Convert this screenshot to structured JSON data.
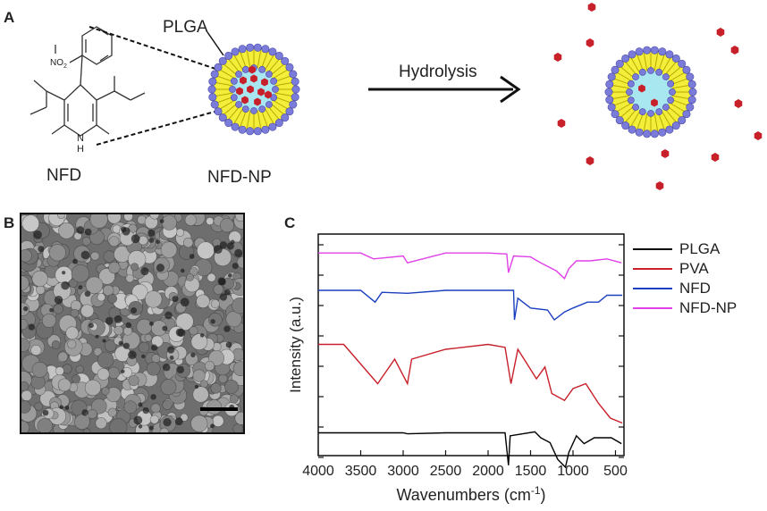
{
  "panel_a": {
    "letter": "A",
    "plga_label": "PLGA",
    "nfd_label": "NFD",
    "nfd_np_label": "NFD-NP",
    "hydrolysis_label": "Hydrolysis",
    "molecule_atoms": {
      "nitro": "NO",
      "nitro_sup": "2",
      "nitro_neg": "-",
      "nh": "H",
      "n": "N"
    },
    "colors": {
      "shell_bead": "#7b7bd9",
      "lipid": "#f2ee3a",
      "core": "#a8e6f0",
      "drug": "#c8202a"
    }
  },
  "panel_b": {
    "letter": "B"
  },
  "panel_c": {
    "letter": "C",
    "legend": [
      {
        "label": "PLGA",
        "color": "#000000"
      },
      {
        "label": "PVA",
        "color": "#c8202a"
      },
      {
        "label": "NFD",
        "color": "#1a3fbf"
      },
      {
        "label": "NFD-NP",
        "color": "#e040e8"
      }
    ]
  },
  "chart_data": {
    "type": "line",
    "xlabel": "Wavenumbers (cm",
    "xlabel_sup": "-1",
    "xlabel_end": ")",
    "ylabel": "Intensity (a.u.)",
    "xlim": [
      4000,
      400
    ],
    "x_ticks": [
      4000,
      3500,
      3000,
      2500,
      2000,
      1500,
      1000,
      500
    ],
    "y_ticks_shown": false,
    "series": [
      {
        "name": "PLGA",
        "color": "#000000",
        "points": [
          [
            4000,
            0.05
          ],
          [
            3500,
            0.05
          ],
          [
            3000,
            0.05
          ],
          [
            2950,
            0.04
          ],
          [
            2500,
            0.05
          ],
          [
            2000,
            0.05
          ],
          [
            1800,
            0.05
          ],
          [
            1760,
            -0.28
          ],
          [
            1740,
            0.02
          ],
          [
            1450,
            0.06
          ],
          [
            1380,
            0.0
          ],
          [
            1270,
            -0.05
          ],
          [
            1180,
            -0.22
          ],
          [
            1090,
            -0.3
          ],
          [
            1050,
            -0.15
          ],
          [
            960,
            0.02
          ],
          [
            870,
            -0.06
          ],
          [
            750,
            0.0
          ],
          [
            550,
            0.0
          ],
          [
            430,
            -0.06
          ]
        ]
      },
      {
        "name": "PVA",
        "color": "#c8202a",
        "points": [
          [
            4000,
            0.95
          ],
          [
            3700,
            0.95
          ],
          [
            3500,
            0.75
          ],
          [
            3300,
            0.55
          ],
          [
            3100,
            0.8
          ],
          [
            2950,
            0.55
          ],
          [
            2900,
            0.8
          ],
          [
            2500,
            0.9
          ],
          [
            2000,
            0.95
          ],
          [
            1800,
            0.92
          ],
          [
            1730,
            0.55
          ],
          [
            1650,
            0.9
          ],
          [
            1430,
            0.6
          ],
          [
            1330,
            0.72
          ],
          [
            1250,
            0.45
          ],
          [
            1100,
            0.38
          ],
          [
            1000,
            0.5
          ],
          [
            850,
            0.55
          ],
          [
            700,
            0.35
          ],
          [
            560,
            0.2
          ],
          [
            420,
            0.15
          ]
        ]
      },
      {
        "name": "NFD",
        "color": "#1a3fbf",
        "points": [
          [
            4000,
            1.5
          ],
          [
            3500,
            1.5
          ],
          [
            3330,
            1.38
          ],
          [
            3250,
            1.48
          ],
          [
            2950,
            1.47
          ],
          [
            2500,
            1.5
          ],
          [
            2000,
            1.5
          ],
          [
            1700,
            1.5
          ],
          [
            1690,
            1.2
          ],
          [
            1650,
            1.42
          ],
          [
            1500,
            1.32
          ],
          [
            1300,
            1.3
          ],
          [
            1220,
            1.2
          ],
          [
            1100,
            1.28
          ],
          [
            1000,
            1.32
          ],
          [
            830,
            1.38
          ],
          [
            700,
            1.38
          ],
          [
            600,
            1.45
          ],
          [
            420,
            1.45
          ]
        ]
      },
      {
        "name": "NFD-NP",
        "color": "#e040e8",
        "points": [
          [
            4000,
            1.88
          ],
          [
            3500,
            1.88
          ],
          [
            3350,
            1.82
          ],
          [
            3000,
            1.85
          ],
          [
            2950,
            1.78
          ],
          [
            2500,
            1.88
          ],
          [
            2000,
            1.88
          ],
          [
            1780,
            1.87
          ],
          [
            1760,
            1.68
          ],
          [
            1700,
            1.85
          ],
          [
            1500,
            1.84
          ],
          [
            1380,
            1.78
          ],
          [
            1200,
            1.7
          ],
          [
            1100,
            1.62
          ],
          [
            1050,
            1.72
          ],
          [
            960,
            1.8
          ],
          [
            800,
            1.8
          ],
          [
            600,
            1.82
          ],
          [
            430,
            1.78
          ]
        ]
      }
    ]
  }
}
